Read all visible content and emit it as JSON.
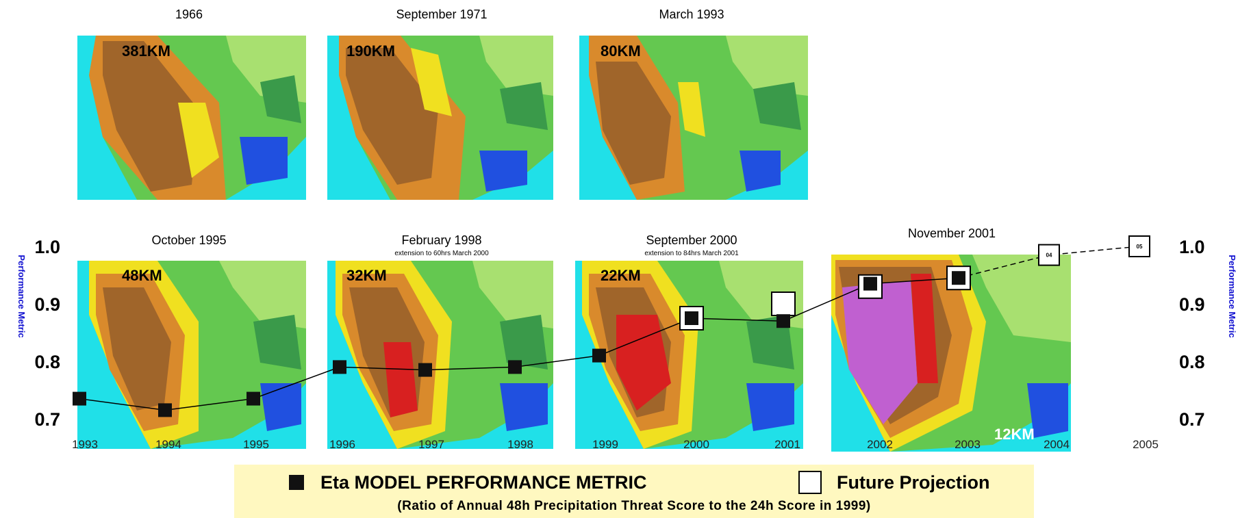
{
  "colors": {
    "ocean": "#20e0e8",
    "brown": "#a0652a",
    "orange": "#d98a2c",
    "yellow": "#f0e020",
    "green": "#64c850",
    "light_green": "#a8e070",
    "dark_green": "#3a9a4a",
    "blue": "#2050e0",
    "red": "#d82020",
    "magenta": "#c060d0",
    "axis_label": "#1010d0",
    "legend_bg": "#fff8c0"
  },
  "maps": [
    {
      "date": "1966",
      "resolution": "381KM"
    },
    {
      "date": "September 1971",
      "resolution": "190KM"
    },
    {
      "date": "March 1993",
      "resolution": "80KM"
    },
    {
      "date": "October 1995",
      "resolution": "48KM"
    },
    {
      "date": "February 1998",
      "note": "extension to 60hrs March 2000",
      "resolution": "32KM"
    },
    {
      "date": "September 2000",
      "note": "extension to 84hrs March 2001",
      "resolution": "22KM"
    },
    {
      "date": "November  2001",
      "resolution": "12KM"
    }
  ],
  "chart_data": {
    "type": "scatter",
    "title": "",
    "xlabel": "",
    "ylabel": "Performance Metric",
    "y2label": "Performance Metric",
    "x_ticks": [
      "1993",
      "1994",
      "1995",
      "1996",
      "1997",
      "1998",
      "1999",
      "2000",
      "2001",
      "2002",
      "2003",
      "2004",
      "2005"
    ],
    "y_ticks": [
      "0.7",
      "0.8",
      "0.9",
      "1.0"
    ],
    "ylim": [
      0.7,
      1.0
    ],
    "series": [
      {
        "name": "Eta MODEL PERFORMANCE METRIC",
        "marker": "filled-square",
        "points": [
          {
            "x": 1993.0,
            "y": 0.735
          },
          {
            "x": 1994.0,
            "y": 0.715
          },
          {
            "x": 1995.0,
            "y": 0.735
          },
          {
            "x": 1996.0,
            "y": 0.79
          },
          {
            "x": 1997.0,
            "y": 0.785
          },
          {
            "x": 1998.0,
            "y": 0.79
          },
          {
            "x": 1999.0,
            "y": 0.81
          },
          {
            "x": 2000.0,
            "y": 0.875
          },
          {
            "x": 2001.0,
            "y": 0.87
          },
          {
            "x": 2002.0,
            "y": 0.935
          },
          {
            "x": 2003.0,
            "y": 0.945
          }
        ]
      },
      {
        "name": "Future Projection",
        "marker": "open-square",
        "points": [
          {
            "x": 2000.0,
            "y": 0.875
          },
          {
            "x": 2001.0,
            "y": 0.9
          },
          {
            "x": 2002.0,
            "y": 0.93
          },
          {
            "x": 2003.0,
            "y": 0.945
          },
          {
            "x": 2004.0,
            "y": 0.985,
            "label": "04"
          },
          {
            "x": 2005.0,
            "y": 1.0,
            "label": "05"
          }
        ]
      }
    ]
  },
  "legend": {
    "eta_label": "Eta MODEL PERFORMANCE METRIC",
    "future_label": "Future Projection",
    "note": "(Ratio of Annual 48h Precipitation Threat Score to the 24h Score in 1999)"
  }
}
